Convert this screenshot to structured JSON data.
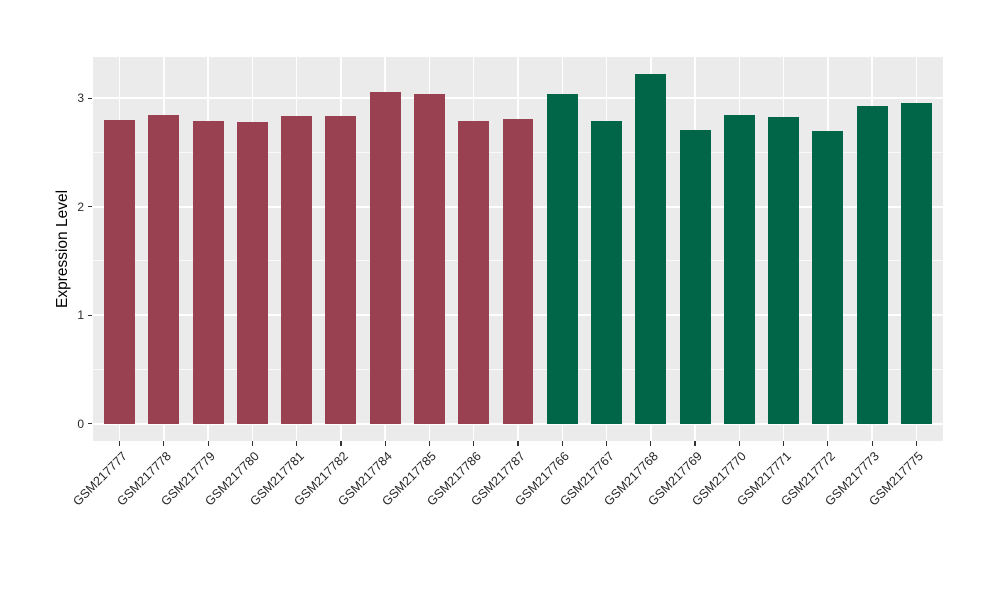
{
  "chart_data": {
    "type": "bar",
    "title": "",
    "ylabel": "Expression Level",
    "xlabel": "",
    "categories": [
      "GSM217777",
      "GSM217778",
      "GSM217779",
      "GSM217780",
      "GSM217781",
      "GSM217782",
      "GSM217784",
      "GSM217785",
      "GSM217786",
      "GSM217787",
      "GSM217766",
      "GSM217767",
      "GSM217768",
      "GSM217769",
      "GSM217770",
      "GSM217771",
      "GSM217772",
      "GSM217773",
      "GSM217775"
    ],
    "values": [
      2.8,
      2.85,
      2.79,
      2.78,
      2.84,
      2.84,
      3.06,
      3.04,
      2.79,
      2.81,
      3.04,
      2.79,
      3.22,
      2.71,
      2.85,
      2.83,
      2.7,
      2.93,
      2.96
    ],
    "group_of_bar": [
      "group1",
      "group1",
      "group1",
      "group1",
      "group1",
      "group1",
      "group1",
      "group1",
      "group1",
      "group1",
      "group2",
      "group2",
      "group2",
      "group2",
      "group2",
      "group2",
      "group2",
      "group2",
      "group2"
    ],
    "colors": {
      "group1": "#9A4151",
      "group2": "#006647",
      "panel_bg": "#EBEBEB",
      "gridline": "#FFFFFF",
      "axis_text": "#262626",
      "axis_title": "#000000"
    },
    "yticks": [
      0,
      1,
      2,
      3
    ],
    "yticks_minor": [
      0.5,
      1.5,
      2.5
    ],
    "ylim": [
      -0.161,
      3.381
    ],
    "x_tick_angle": 45,
    "grid": "on",
    "legend_position": "none"
  }
}
